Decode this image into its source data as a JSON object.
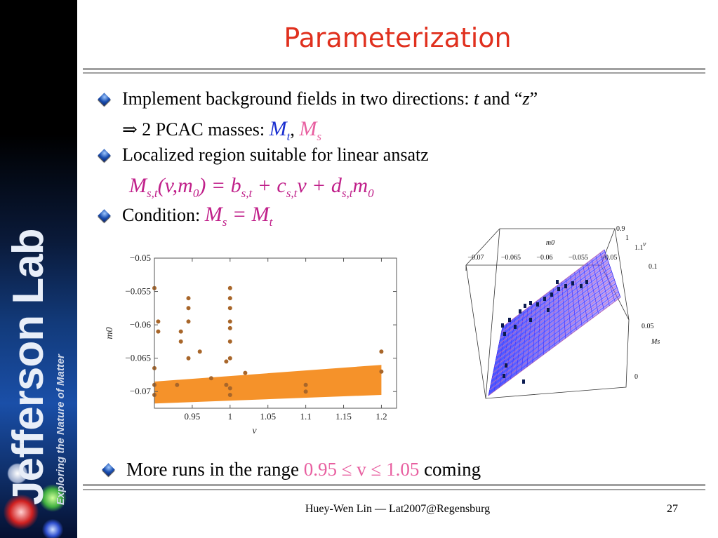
{
  "sidebar": {
    "brand": "Jefferson Lab",
    "tagline": "Exploring the Nature of Matter"
  },
  "title": "Parameterization",
  "bullets": {
    "b1_text": "Implement background fields in two directions:",
    "b1_t": "t",
    "b1_and": "and “",
    "b1_z": "z",
    "b1_close": "”",
    "b1b_text": "⇒ 2 PCAC masses:",
    "b1b_M1": "M",
    "b1b_sub1": "t",
    "b1b_comma": ",",
    "b1b_M2": "M",
    "b1b_sub2": "s",
    "b2_text": "Localized region suitable for linear ansatz",
    "eq_lhs": "M",
    "eq_lhs_sub": "s,t",
    "eq_args_open": "(v,m",
    "eq_args_sub": "0",
    "eq_args_close": ") = b",
    "eq_b_sub": "s,t",
    "eq_plus1": " + c",
    "eq_c_sub": "s,t",
    "eq_v": "v + d",
    "eq_d_sub": "s,t",
    "eq_m": "m",
    "eq_m_sub": "0",
    "b3_text": "Condition:",
    "b3_M1": "M",
    "b3_sub1": "s",
    "b3_eq": " = M",
    "b3_sub2": "t",
    "b4_text": "More runs in the range",
    "b4_range": "0.95 ≤ v ≤ 1.05",
    "b4_end": "coming"
  },
  "footer": {
    "text": "Huey-Wen Lin — Lat2007@Regensburg",
    "page": "27"
  },
  "chart_data": [
    {
      "type": "scatter",
      "title": "",
      "xlabel": "v",
      "ylabel": "m0",
      "xlim": [
        0.9,
        1.22
      ],
      "ylim": [
        -0.0725,
        -0.05
      ],
      "xticks": [
        0.95,
        1,
        1.05,
        1.1,
        1.15,
        1.2
      ],
      "xtick_labels": [
        "0.95",
        "1",
        "1.05",
        "1.1",
        "1.15",
        "1.2"
      ],
      "yticks": [
        -0.05,
        -0.055,
        -0.06,
        -0.065,
        -0.07
      ],
      "ytick_labels": [
        "−0.05",
        "−0.055",
        "−0.06",
        "−0.065",
        "−0.07"
      ],
      "points": [
        [
          0.9,
          -0.0545
        ],
        [
          0.9,
          -0.0665
        ],
        [
          0.9,
          -0.069
        ],
        [
          0.9,
          -0.0705
        ],
        [
          0.905,
          -0.0595
        ],
        [
          0.905,
          -0.061
        ],
        [
          0.93,
          -0.069
        ],
        [
          0.935,
          -0.0625
        ],
        [
          0.935,
          -0.061
        ],
        [
          0.945,
          -0.056
        ],
        [
          0.945,
          -0.0575
        ],
        [
          0.945,
          -0.0595
        ],
        [
          0.945,
          -0.065
        ],
        [
          0.96,
          -0.064
        ],
        [
          0.975,
          -0.068
        ],
        [
          0.995,
          -0.0655
        ],
        [
          0.995,
          -0.069
        ],
        [
          1.0,
          -0.0545
        ],
        [
          1.0,
          -0.056
        ],
        [
          1.0,
          -0.0575
        ],
        [
          1.0,
          -0.0595
        ],
        [
          1.0,
          -0.0605
        ],
        [
          1.0,
          -0.0625
        ],
        [
          1.0,
          -0.065
        ],
        [
          1.0,
          -0.0695
        ],
        [
          1.0,
          -0.0705
        ],
        [
          1.02,
          -0.0672
        ],
        [
          1.1,
          -0.069
        ],
        [
          1.1,
          -0.07
        ],
        [
          1.2,
          -0.064
        ],
        [
          1.2,
          -0.067
        ]
      ],
      "band": {
        "x": [
          0.9,
          1.2
        ],
        "upper": [
          -0.0685,
          -0.066
        ],
        "lower": [
          -0.0718,
          -0.0705
        ],
        "color": "#f5922a"
      },
      "point_color": "#a8662a"
    },
    {
      "type": "surface3d",
      "title": "",
      "x_axis_label": "m0",
      "x_tick_labels": [
        "−0.07",
        "−0.065",
        "−0.06",
        "−0.055",
        "−0.05"
      ],
      "v_axis_label": "v",
      "v_tick_labels": [
        "0.9",
        "1",
        "1.1"
      ],
      "z_axis_label": "Ms",
      "z_tick_labels": [
        "0.1",
        "0.05",
        "0"
      ],
      "surface_colors": [
        "#2a3cff",
        "#e86aa0"
      ]
    }
  ]
}
